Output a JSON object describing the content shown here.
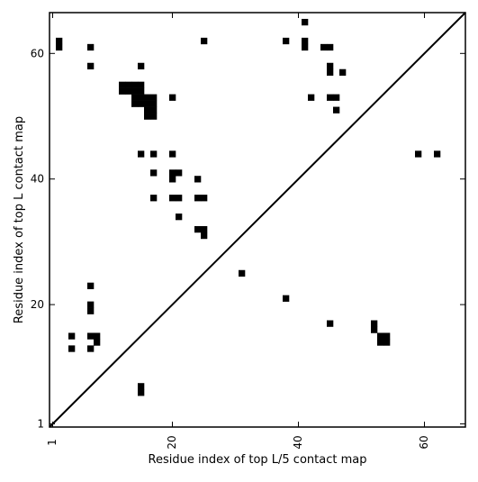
{
  "chart_data": {
    "type": "heatmap",
    "xlabel": "Residue index of top L/5 contact map",
    "ylabel": "Residue index of top L contact map",
    "xlim": [
      0.5,
      66.5
    ],
    "ylim": [
      0.5,
      66.5
    ],
    "x_ticks": [
      1,
      20,
      40,
      60
    ],
    "y_ticks": [
      1,
      20,
      40,
      60
    ],
    "x_tick_labels": [
      "1",
      "20",
      "40",
      "60"
    ],
    "y_tick_labels": [
      "1",
      "20",
      "40",
      "60"
    ],
    "grid": false,
    "diagonal": true,
    "colors": {
      "cell": "#000000",
      "background": "#ffffff",
      "axis": "#000000"
    },
    "cells": [
      [
        2,
        61
      ],
      [
        2,
        62
      ],
      [
        7,
        61
      ],
      [
        7,
        58
      ],
      [
        15,
        58
      ],
      [
        25,
        62
      ],
      [
        38,
        62
      ],
      [
        41,
        65
      ],
      [
        41,
        62
      ],
      [
        41,
        61
      ],
      [
        44,
        61
      ],
      [
        45,
        61
      ],
      [
        45,
        58
      ],
      [
        45,
        57
      ],
      [
        47,
        57
      ],
      [
        12,
        55
      ],
      [
        13,
        55
      ],
      [
        14,
        55
      ],
      [
        15,
        55
      ],
      [
        12,
        54
      ],
      [
        13,
        54
      ],
      [
        14,
        54
      ],
      [
        15,
        54
      ],
      [
        14,
        53
      ],
      [
        15,
        53
      ],
      [
        16,
        53
      ],
      [
        17,
        53
      ],
      [
        14,
        52
      ],
      [
        15,
        52
      ],
      [
        16,
        52
      ],
      [
        17,
        52
      ],
      [
        16,
        51
      ],
      [
        17,
        51
      ],
      [
        16,
        50
      ],
      [
        17,
        50
      ],
      [
        20,
        53
      ],
      [
        42,
        53
      ],
      [
        45,
        53
      ],
      [
        46,
        53
      ],
      [
        46,
        51
      ],
      [
        15,
        44
      ],
      [
        17,
        44
      ],
      [
        20,
        44
      ],
      [
        17,
        41
      ],
      [
        20,
        41
      ],
      [
        21,
        41
      ],
      [
        20,
        40
      ],
      [
        24,
        40
      ],
      [
        17,
        37
      ],
      [
        20,
        37
      ],
      [
        21,
        37
      ],
      [
        24,
        37
      ],
      [
        25,
        37
      ],
      [
        21,
        34
      ],
      [
        24,
        32
      ],
      [
        25,
        32
      ],
      [
        25,
        31
      ],
      [
        59,
        44
      ],
      [
        62,
        44
      ],
      [
        31,
        25
      ],
      [
        7,
        23
      ],
      [
        7,
        20
      ],
      [
        7,
        19
      ],
      [
        38,
        21
      ],
      [
        4,
        15
      ],
      [
        7,
        15
      ],
      [
        8,
        15
      ],
      [
        8,
        14
      ],
      [
        4,
        13
      ],
      [
        7,
        13
      ],
      [
        15,
        7
      ],
      [
        15,
        6
      ],
      [
        45,
        17
      ],
      [
        52,
        17
      ],
      [
        52,
        16
      ],
      [
        53,
        15
      ],
      [
        54,
        15
      ],
      [
        53,
        14
      ],
      [
        54,
        14
      ]
    ]
  }
}
